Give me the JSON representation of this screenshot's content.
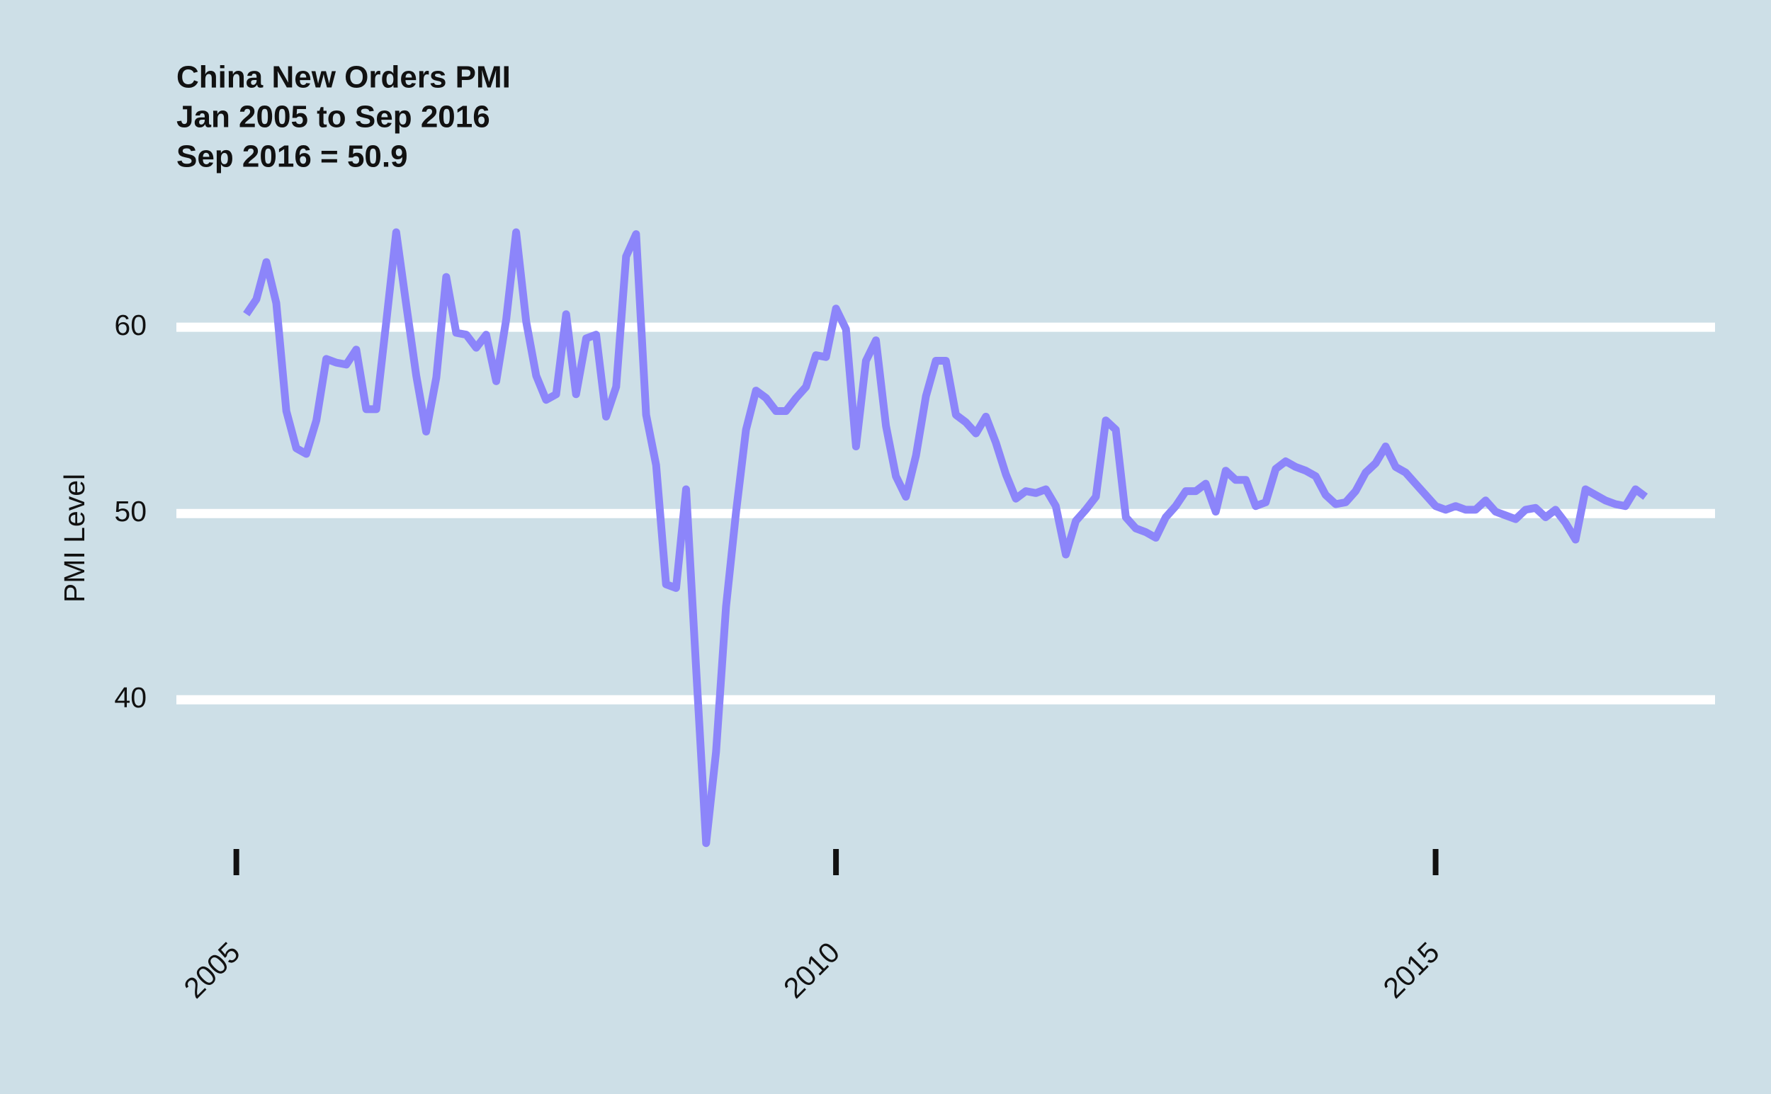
{
  "chart_data": {
    "type": "line",
    "title": "China New Orders PMI",
    "subtitle": [
      "Jan 2005 to Sep 2016",
      "Sep 2016 = 50.9"
    ],
    "y_label": "PMI Level",
    "x": [
      2005.083,
      2005.167,
      2005.25,
      2005.333,
      2005.417,
      2005.5,
      2005.583,
      2005.667,
      2005.75,
      2005.833,
      2005.917,
      2006,
      2006.083,
      2006.167,
      2006.25,
      2006.333,
      2006.417,
      2006.5,
      2006.583,
      2006.667,
      2006.75,
      2006.833,
      2006.917,
      2007,
      2007.083,
      2007.167,
      2007.25,
      2007.333,
      2007.417,
      2007.5,
      2007.583,
      2007.667,
      2007.75,
      2007.833,
      2007.917,
      2008,
      2008.083,
      2008.167,
      2008.25,
      2008.333,
      2008.417,
      2008.5,
      2008.583,
      2008.667,
      2008.75,
      2008.833,
      2008.917,
      2009,
      2009.083,
      2009.167,
      2009.25,
      2009.333,
      2009.417,
      2009.5,
      2009.583,
      2009.667,
      2009.75,
      2009.833,
      2009.917,
      2010,
      2010.083,
      2010.167,
      2010.25,
      2010.333,
      2010.417,
      2010.5,
      2010.583,
      2010.667,
      2010.75,
      2010.833,
      2010.917,
      2011,
      2011.083,
      2011.167,
      2011.25,
      2011.333,
      2011.417,
      2011.5,
      2011.583,
      2011.667,
      2011.75,
      2011.833,
      2011.917,
      2012,
      2012.083,
      2012.167,
      2012.25,
      2012.333,
      2012.417,
      2012.5,
      2012.583,
      2012.667,
      2012.75,
      2012.833,
      2012.917,
      2013,
      2013.083,
      2013.167,
      2013.25,
      2013.333,
      2013.417,
      2013.5,
      2013.583,
      2013.667,
      2013.75,
      2013.833,
      2013.917,
      2014,
      2014.083,
      2014.167,
      2014.25,
      2014.333,
      2014.417,
      2014.5,
      2014.583,
      2014.667,
      2014.75,
      2014.833,
      2014.917,
      2015,
      2015.083,
      2015.167,
      2015.25,
      2015.333,
      2015.417,
      2015.5,
      2015.583,
      2015.667,
      2015.75,
      2015.833,
      2015.917,
      2016,
      2016.083,
      2016.167,
      2016.25,
      2016.333,
      2016.417,
      2016.5,
      2016.583,
      2016.667,
      2016.75
    ],
    "series": [
      {
        "name": "China New Orders PMI",
        "color": "#8c85fa",
        "values": [
          60.7,
          61.5,
          63.5,
          61.3,
          55.5,
          53.5,
          53.2,
          55.0,
          58.3,
          58.1,
          58.0,
          58.8,
          55.6,
          55.6,
          60.3,
          65.1,
          61.2,
          57.4,
          54.4,
          57.3,
          62.7,
          59.7,
          59.6,
          58.9,
          59.6,
          57.1,
          60.4,
          65.1,
          60.3,
          57.4,
          56.1,
          56.4,
          60.7,
          56.4,
          59.4,
          59.6,
          55.2,
          56.8,
          63.8,
          65.0,
          55.3,
          52.6,
          46.2,
          46.0,
          51.3,
          41.8,
          32.3,
          37.2,
          45.0,
          50.1,
          54.5,
          56.6,
          56.2,
          55.5,
          55.5,
          56.2,
          56.8,
          58.5,
          58.4,
          61.0,
          59.9,
          53.6,
          58.2,
          59.3,
          54.7,
          52.0,
          50.9,
          53.1,
          56.3,
          58.2,
          58.2,
          55.3,
          54.9,
          54.3,
          55.2,
          53.8,
          52.1,
          50.8,
          51.2,
          51.1,
          51.3,
          50.4,
          47.8,
          49.6,
          50.2,
          50.9,
          55.0,
          54.5,
          49.8,
          49.2,
          49.0,
          48.7,
          49.8,
          50.4,
          51.2,
          51.2,
          51.6,
          50.1,
          52.3,
          51.8,
          51.8,
          50.4,
          50.6,
          52.4,
          52.8,
          52.5,
          52.3,
          52.0,
          51.0,
          50.5,
          50.6,
          51.2,
          52.2,
          52.7,
          53.6,
          52.5,
          52.2,
          51.6,
          51.0,
          50.4,
          50.2,
          50.4,
          50.2,
          50.2,
          50.7,
          50.1,
          49.9,
          49.7,
          50.2,
          50.3,
          49.8,
          50.2,
          49.5,
          48.6,
          51.3,
          51.0,
          50.7,
          50.5,
          50.4,
          51.3,
          50.9
        ]
      }
    ],
    "xlim": [
      2004.5,
      2017.33
    ],
    "xticks": [
      2005,
      2010,
      2015
    ],
    "ylim": [
      31,
      67
    ],
    "yticks": [
      40,
      50,
      60
    ],
    "grid": true
  }
}
